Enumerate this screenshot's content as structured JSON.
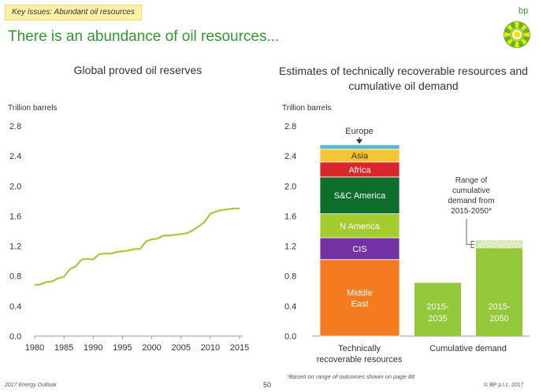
{
  "header": {
    "tag": "Key issues: Abundant oil resources",
    "headline": "There is an abundance of oil resources...",
    "brand": "bp"
  },
  "footer": {
    "left": "2017 Energy Outlook",
    "page": "50",
    "right": "© BP p.l.c. 2017"
  },
  "colors": {
    "headline": "#2e9b2e",
    "line": "#a8c93a",
    "europe": "#5fb8c8",
    "asia": "#f7c531",
    "africa": "#d9262b",
    "sc_america": "#0d6d2b",
    "n_america": "#a4cc2e",
    "cis": "#7331a3",
    "middle_east": "#f47b20",
    "demand": "#93c83a"
  },
  "chart_data": [
    {
      "type": "line",
      "title": "Global proved oil reserves",
      "ylabel": "Trillion barrels",
      "ylim": [
        0,
        2.8
      ],
      "yticks": [
        "0.0",
        "0.4",
        "0.8",
        "1.2",
        "1.6",
        "2.0",
        "2.4",
        "2.8"
      ],
      "xticks": [
        "1980",
        "1985",
        "1990",
        "1995",
        "2000",
        "2005",
        "2010",
        "2015"
      ],
      "x": [
        1980,
        1981,
        1982,
        1983,
        1984,
        1985,
        1986,
        1987,
        1988,
        1989,
        1990,
        1991,
        1992,
        1993,
        1994,
        1995,
        1996,
        1997,
        1998,
        1999,
        2000,
        2001,
        2002,
        2003,
        2004,
        2005,
        2006,
        2007,
        2008,
        2009,
        2010,
        2011,
        2012,
        2013,
        2014,
        2015
      ],
      "y": [
        0.68,
        0.69,
        0.72,
        0.73,
        0.77,
        0.79,
        0.89,
        0.93,
        1.02,
        1.03,
        1.02,
        1.09,
        1.1,
        1.1,
        1.12,
        1.13,
        1.14,
        1.16,
        1.16,
        1.26,
        1.29,
        1.3,
        1.34,
        1.34,
        1.35,
        1.36,
        1.37,
        1.41,
        1.46,
        1.52,
        1.63,
        1.66,
        1.68,
        1.69,
        1.7,
        1.7
      ]
    },
    {
      "type": "bar",
      "title": "Estimates of technically recoverable resources and cumulative oil demand",
      "ylabel": "Trillion barrels",
      "ylim": [
        0,
        2.8
      ],
      "yticks": [
        "0.0",
        "0.4",
        "0.8",
        "1.2",
        "1.6",
        "2.0",
        "2.4",
        "2.8"
      ],
      "stack": {
        "category": "Technically recoverable resources",
        "segments": [
          {
            "name": "Middle East",
            "value": 1.02
          },
          {
            "name": "CIS",
            "value": 0.29
          },
          {
            "name": "N America",
            "value": 0.32
          },
          {
            "name": "S&C America",
            "value": 0.49
          },
          {
            "name": "Africa",
            "value": 0.2
          },
          {
            "name": "Asia",
            "value": 0.17
          },
          {
            "name": "Europe",
            "value": 0.06
          }
        ]
      },
      "demand": {
        "category": "Cumulative demand",
        "bars": [
          {
            "name": "2015-2035",
            "value": 0.71
          },
          {
            "name": "2015-2050",
            "value": 1.17,
            "range_high": 1.27
          }
        ]
      },
      "annotations": {
        "europe_label": "Europe",
        "range_label": [
          "Range of",
          "cumulative",
          "demand from",
          "2015-2050*"
        ],
        "xlabel_left": [
          "Technically",
          "recoverable resources"
        ],
        "xlabel_right": "Cumulative demand",
        "footnote": "*Based on range of outcomes shown on page 88"
      }
    }
  ]
}
